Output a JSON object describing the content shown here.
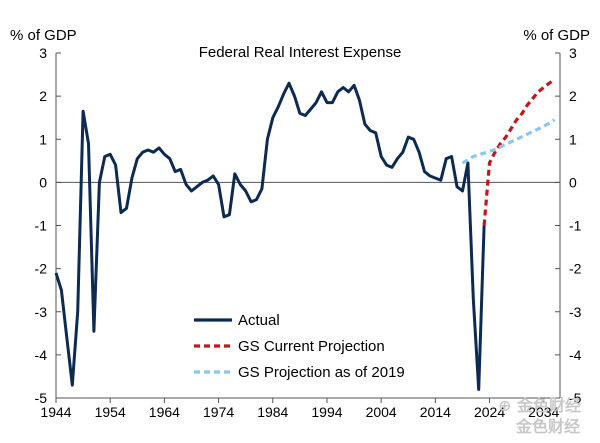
{
  "chart_data": {
    "type": "line",
    "title": "Federal Real Interest Expense",
    "ylabel_left": "% of GDP",
    "ylabel_right": "% of GDP",
    "ylim": [
      -5,
      3
    ],
    "xlim": [
      1944,
      2037
    ],
    "yticks": [
      {
        "value": 3,
        "label": "3"
      },
      {
        "value": 2,
        "label": "2"
      },
      {
        "value": 1,
        "label": "1"
      },
      {
        "value": 0,
        "label": "0"
      },
      {
        "value": -1,
        "label": "-1"
      },
      {
        "value": -2,
        "label": "-2"
      },
      {
        "value": -3,
        "label": "-3"
      },
      {
        "value": -4,
        "label": "-4"
      },
      {
        "value": -5,
        "label": "-5"
      }
    ],
    "xticks": [
      {
        "value": 1944,
        "label": "1944"
      },
      {
        "value": 1954,
        "label": "1954"
      },
      {
        "value": 1964,
        "label": "1964"
      },
      {
        "value": 1974,
        "label": "1974"
      },
      {
        "value": 1984,
        "label": "1984"
      },
      {
        "value": 1994,
        "label": "1994"
      },
      {
        "value": 2004,
        "label": "2004"
      },
      {
        "value": 2014,
        "label": "2014"
      },
      {
        "value": 2024,
        "label": "2024"
      },
      {
        "value": 2034,
        "label": "2034"
      }
    ],
    "series": [
      {
        "name": "Actual",
        "color": "#0d2a52",
        "style": "solid",
        "x": [
          1944,
          1945,
          1946,
          1947,
          1948,
          1949,
          1950,
          1951,
          1952,
          1953,
          1954,
          1955,
          1956,
          1957,
          1958,
          1959,
          1960,
          1961,
          1962,
          1963,
          1964,
          1965,
          1966,
          1967,
          1968,
          1969,
          1970,
          1971,
          1972,
          1973,
          1974,
          1975,
          1976,
          1977,
          1978,
          1979,
          1980,
          1981,
          1982,
          1983,
          1984,
          1985,
          1986,
          1987,
          1988,
          1989,
          1990,
          1991,
          1992,
          1993,
          1994,
          1995,
          1996,
          1997,
          1998,
          1999,
          2000,
          2001,
          2002,
          2003,
          2004,
          2005,
          2006,
          2007,
          2008,
          2009,
          2010,
          2011,
          2012,
          2013,
          2014,
          2015,
          2016,
          2017,
          2018,
          2019,
          2020,
          2021,
          2022,
          2023
        ],
        "values": [
          -2.1,
          -2.5,
          -3.6,
          -4.7,
          -3.0,
          1.65,
          0.9,
          -3.45,
          0.0,
          0.6,
          0.65,
          0.4,
          -0.7,
          -0.6,
          0.1,
          0.55,
          0.7,
          0.75,
          0.7,
          0.8,
          0.65,
          0.55,
          0.25,
          0.3,
          -0.05,
          -0.2,
          -0.1,
          0.0,
          0.05,
          0.15,
          -0.05,
          -0.8,
          -0.75,
          0.2,
          -0.05,
          -0.2,
          -0.45,
          -0.4,
          -0.15,
          1.0,
          1.5,
          1.75,
          2.05,
          2.3,
          2.0,
          1.6,
          1.55,
          1.7,
          1.85,
          2.1,
          1.85,
          1.85,
          2.1,
          2.2,
          2.1,
          2.25,
          1.9,
          1.35,
          1.2,
          1.15,
          0.6,
          0.4,
          0.35,
          0.55,
          0.7,
          1.05,
          1.0,
          0.7,
          0.25,
          0.15,
          0.1,
          0.05,
          0.55,
          0.6,
          -0.1,
          -0.2,
          0.45,
          -2.7,
          -4.8,
          -1.0
        ]
      },
      {
        "name": "GS Current Projection",
        "color": "#c0161d",
        "style": "dashed",
        "x": [
          2023,
          2024,
          2025,
          2026,
          2027,
          2028,
          2029,
          2030,
          2031,
          2032,
          2033,
          2034,
          2035,
          2036
        ],
        "values": [
          -1.0,
          0.45,
          0.7,
          0.9,
          1.05,
          1.25,
          1.45,
          1.6,
          1.8,
          1.95,
          2.1,
          2.2,
          2.3,
          2.38
        ]
      },
      {
        "name": "GS Projection as of 2019",
        "color": "#8ec5ea",
        "style": "dashed",
        "x": [
          2019,
          2020,
          2021,
          2022,
          2023,
          2024,
          2025,
          2026,
          2027,
          2028,
          2029,
          2030,
          2031,
          2032,
          2033,
          2034,
          2035,
          2036
        ],
        "values": [
          0.45,
          0.52,
          0.6,
          0.64,
          0.68,
          0.72,
          0.76,
          0.82,
          0.88,
          0.94,
          1.0,
          1.06,
          1.12,
          1.18,
          1.24,
          1.3,
          1.37,
          1.45
        ]
      }
    ]
  },
  "watermark": {
    "line1": "⊕ 金色财经",
    "line2": "金色财经"
  }
}
